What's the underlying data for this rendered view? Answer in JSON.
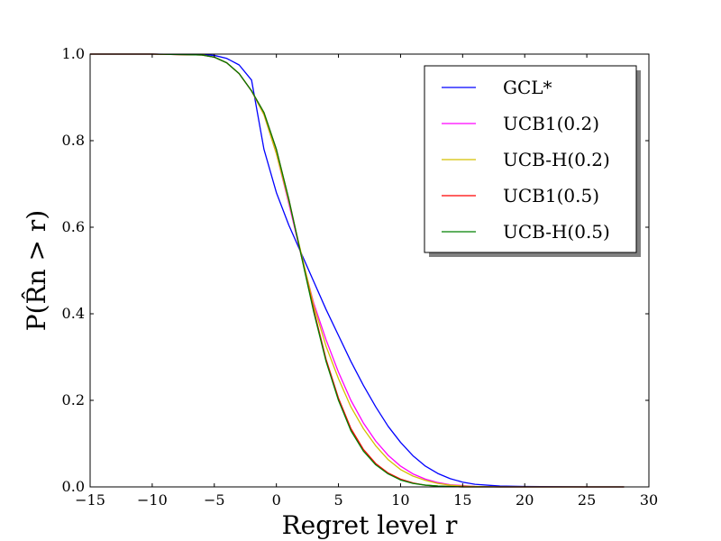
{
  "chart_data": {
    "type": "line",
    "title": "",
    "xlabel": "Regret level r",
    "ylabel": "P(R̂n > r)",
    "xlim": [
      -15,
      30
    ],
    "ylim": [
      0,
      1
    ],
    "xticks": [
      "−15",
      "−10",
      "−5",
      "0",
      "5",
      "10",
      "15",
      "20",
      "25",
      "30"
    ],
    "xtick_values": [
      -15,
      -10,
      -5,
      0,
      5,
      10,
      15,
      20,
      25,
      30
    ],
    "yticks": [
      "0.0",
      "0.2",
      "0.4",
      "0.6",
      "0.8",
      "1.0"
    ],
    "ytick_values": [
      0,
      0.2,
      0.4,
      0.6,
      0.8,
      1.0
    ],
    "grid": false,
    "legend_position": "top-right",
    "series": [
      {
        "name": "GCL*",
        "color": "#0000ff",
        "x": [
          -15,
          -10,
          -6,
          -5,
          -4,
          -3,
          -2,
          -1,
          0,
          1,
          2,
          3,
          4,
          5,
          6,
          7,
          8,
          9,
          10,
          11,
          12,
          13,
          14,
          15,
          16,
          18,
          20,
          25,
          28
        ],
        "y": [
          1.0,
          1.0,
          0.999,
          0.997,
          0.99,
          0.975,
          0.94,
          0.78,
          0.68,
          0.605,
          0.54,
          0.475,
          0.41,
          0.35,
          0.29,
          0.235,
          0.185,
          0.14,
          0.103,
          0.072,
          0.048,
          0.031,
          0.019,
          0.011,
          0.006,
          0.002,
          0.001,
          0.0,
          0.0
        ]
      },
      {
        "name": "UCB1(0.2)",
        "color": "#ff00ff",
        "x": [
          -15,
          -10,
          -6,
          -5,
          -4,
          -3,
          -2,
          -1,
          0,
          1,
          2,
          3,
          4,
          5,
          6,
          7,
          8,
          9,
          10,
          11,
          12,
          13,
          14,
          15,
          16,
          18,
          20,
          25,
          28
        ],
        "y": [
          1.0,
          1.0,
          0.998,
          0.993,
          0.98,
          0.955,
          0.915,
          0.86,
          0.77,
          0.655,
          0.535,
          0.425,
          0.34,
          0.265,
          0.2,
          0.148,
          0.106,
          0.073,
          0.048,
          0.03,
          0.018,
          0.01,
          0.005,
          0.003,
          0.001,
          0.0,
          0.0,
          0.0,
          0.0
        ]
      },
      {
        "name": "UCB-H(0.2)",
        "color": "#d4c000",
        "x": [
          -15,
          -10,
          -6,
          -5,
          -4,
          -3,
          -2,
          -1,
          0,
          1,
          2,
          3,
          4,
          5,
          6,
          7,
          8,
          9,
          10,
          11,
          12,
          13,
          14,
          15,
          16,
          18,
          20,
          25,
          28
        ],
        "y": [
          1.0,
          1.0,
          0.998,
          0.993,
          0.98,
          0.955,
          0.915,
          0.86,
          0.77,
          0.66,
          0.54,
          0.42,
          0.325,
          0.25,
          0.185,
          0.135,
          0.095,
          0.063,
          0.04,
          0.025,
          0.015,
          0.008,
          0.004,
          0.002,
          0.001,
          0.0,
          0.0,
          0.0,
          0.0
        ]
      },
      {
        "name": "UCB1(0.5)",
        "color": "#ff0000",
        "x": [
          -15,
          -10,
          -6,
          -5,
          -4,
          -3,
          -2,
          -1,
          0,
          1,
          2,
          3,
          4,
          5,
          6,
          7,
          8,
          9,
          10,
          11,
          12,
          13,
          14,
          15,
          16,
          18,
          20,
          25,
          28
        ],
        "y": [
          1.0,
          1.0,
          0.998,
          0.993,
          0.98,
          0.955,
          0.915,
          0.865,
          0.78,
          0.665,
          0.535,
          0.41,
          0.295,
          0.205,
          0.135,
          0.087,
          0.054,
          0.032,
          0.018,
          0.009,
          0.004,
          0.002,
          0.001,
          0.0,
          0.0,
          0.0,
          0.0,
          0.0,
          0.0
        ]
      },
      {
        "name": "UCB-H(0.5)",
        "color": "#008000",
        "x": [
          -15,
          -10,
          -6,
          -5,
          -4,
          -3,
          -2,
          -1,
          0,
          1,
          2,
          3,
          4,
          5,
          6,
          7,
          8,
          9,
          10,
          11,
          12,
          13,
          14,
          15,
          16,
          18,
          20,
          25,
          28
        ],
        "y": [
          1.0,
          1.0,
          0.998,
          0.993,
          0.98,
          0.955,
          0.915,
          0.865,
          0.78,
          0.665,
          0.535,
          0.405,
          0.29,
          0.2,
          0.13,
          0.083,
          0.051,
          0.03,
          0.016,
          0.008,
          0.004,
          0.002,
          0.001,
          0.0,
          0.0,
          0.0,
          0.0,
          0.0,
          0.0
        ]
      }
    ]
  }
}
